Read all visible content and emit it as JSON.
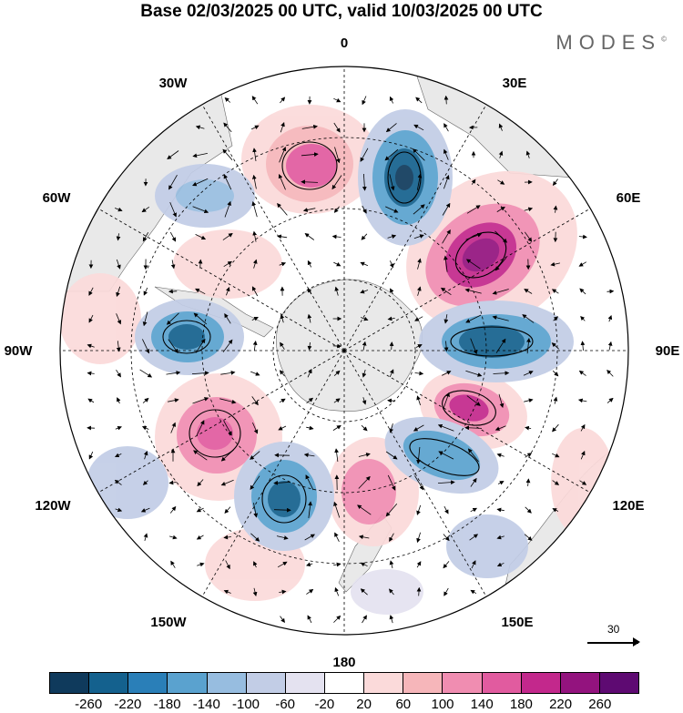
{
  "title": "Base 02/03/2025 00 UTC, valid 10/03/2025 00 UTC",
  "brand": "MODES",
  "brand_mark": "©",
  "map": {
    "projection": "south polar stereographic",
    "longitude_labels": {
      "top": "0",
      "top_right": "30E",
      "upper_right": "60E",
      "right": "90E",
      "lower_right": "120E",
      "bottom_right": "150E",
      "bottom": "180",
      "bottom_left": "150W",
      "lower_left": "120W",
      "left": "90W",
      "upper_left": "60W",
      "top_left": "30W"
    },
    "land_color": "#e9e9e9",
    "grid_style": "dashed"
  },
  "reference_vector": {
    "label": "30"
  },
  "colorbar": {
    "colors": [
      "#0f3a5c",
      "#14618e",
      "#2a7fb8",
      "#5aa2cf",
      "#97bde0",
      "#c2cde6",
      "#e4e2f0",
      "#ffffff",
      "#fbdada",
      "#f6b6ba",
      "#f08db1",
      "#e15b9f",
      "#c3288c",
      "#93137e",
      "#5e0a72"
    ],
    "tick_labels": [
      "-260",
      "-220",
      "-180",
      "-140",
      "-100",
      "-60",
      "-20",
      "20",
      "60",
      "100",
      "140",
      "180",
      "220",
      "260"
    ]
  }
}
